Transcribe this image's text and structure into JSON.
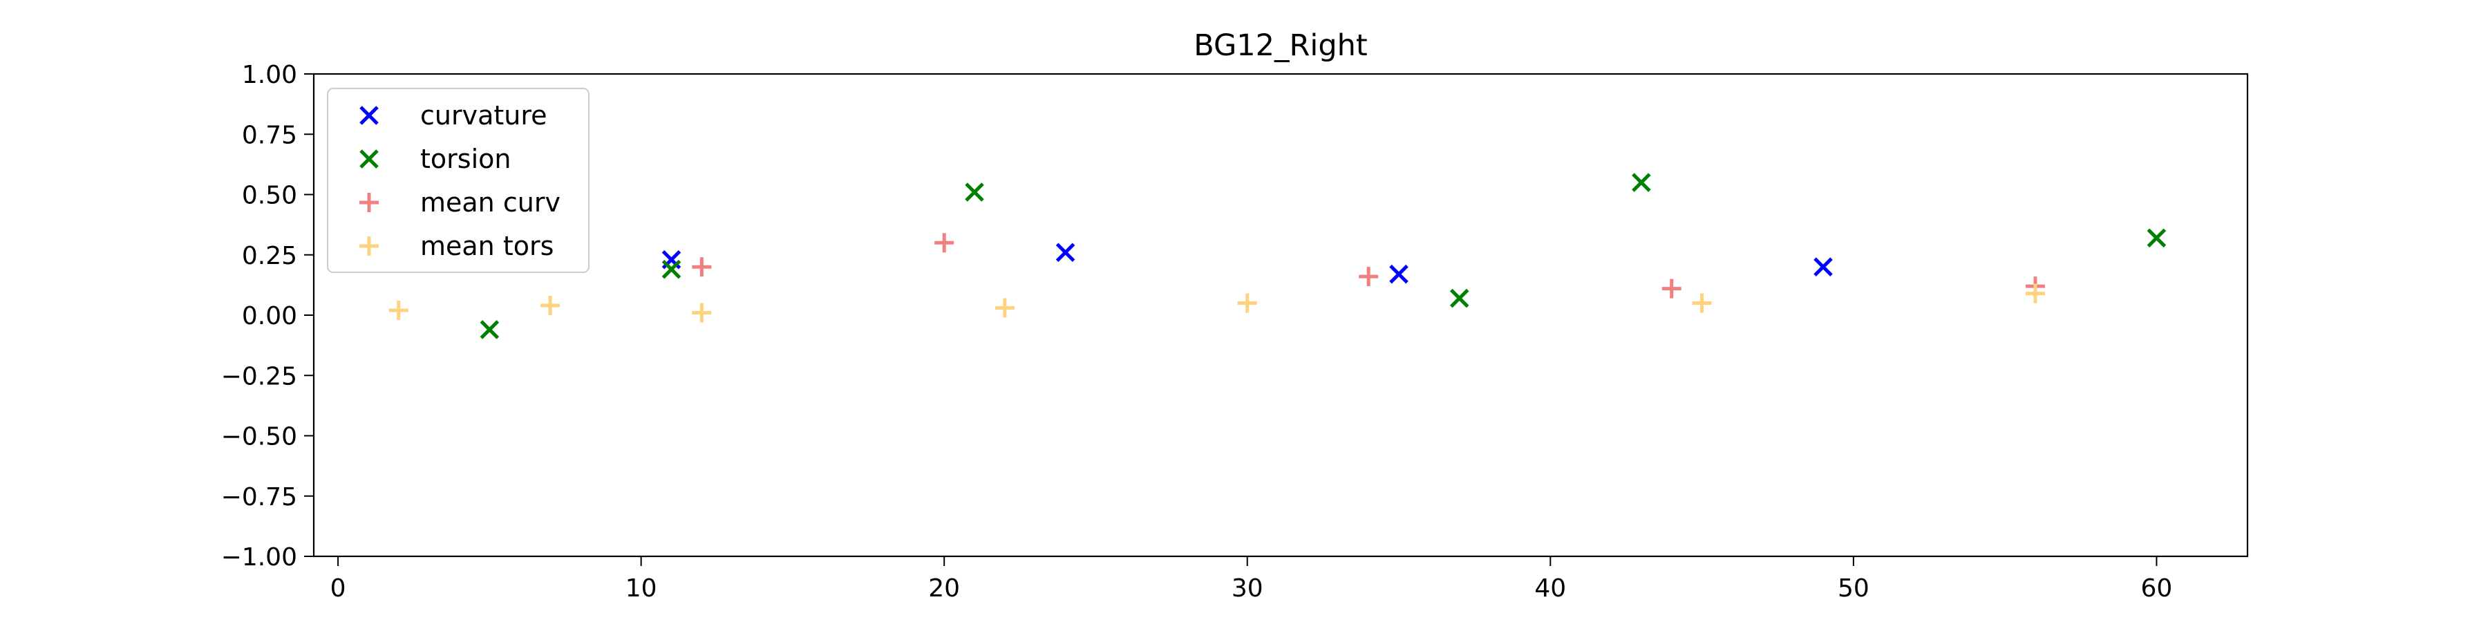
{
  "chart_data": {
    "type": "scatter",
    "title": "BG12_Right",
    "xlabel": "",
    "ylabel": "",
    "xlim": [
      -0.8,
      63
    ],
    "ylim": [
      -1.0,
      1.0
    ],
    "xticks": [
      0,
      10,
      20,
      30,
      40,
      50,
      60
    ],
    "xtick_labels": [
      "0",
      "10",
      "20",
      "30",
      "40",
      "50",
      "60"
    ],
    "yticks": [
      1.0,
      0.75,
      0.5,
      0.25,
      0.0,
      -0.25,
      -0.5,
      -0.75,
      -1.0
    ],
    "ytick_labels": [
      "1.00",
      "0.75",
      "0.50",
      "0.25",
      "0.00",
      "−0.25",
      "−0.50",
      "−0.75",
      "−1.00"
    ],
    "grid": false,
    "legend_position": "top-left",
    "series": [
      {
        "name": "curvature",
        "marker": "x",
        "color": "#0000ff",
        "points": [
          [
            11,
            0.23
          ],
          [
            24,
            0.26
          ],
          [
            35,
            0.17
          ],
          [
            49,
            0.2
          ]
        ]
      },
      {
        "name": "torsion",
        "marker": "x",
        "color": "#008000",
        "points": [
          [
            5,
            -0.06
          ],
          [
            11,
            0.19
          ],
          [
            21,
            0.51
          ],
          [
            37,
            0.07
          ],
          [
            43,
            0.55
          ],
          [
            60,
            0.32
          ]
        ]
      },
      {
        "name": "mean curv",
        "marker": "+",
        "color": "#f08080",
        "points": [
          [
            12,
            0.2
          ],
          [
            20,
            0.3
          ],
          [
            34,
            0.16
          ],
          [
            44,
            0.11
          ],
          [
            56,
            0.12
          ]
        ]
      },
      {
        "name": "mean tors",
        "marker": "+",
        "color": "#ffd27f",
        "points": [
          [
            2,
            0.02
          ],
          [
            7,
            0.04
          ],
          [
            12,
            0.01
          ],
          [
            22,
            0.03
          ],
          [
            30,
            0.05
          ],
          [
            45,
            0.05
          ],
          [
            56,
            0.09
          ]
        ]
      }
    ]
  }
}
